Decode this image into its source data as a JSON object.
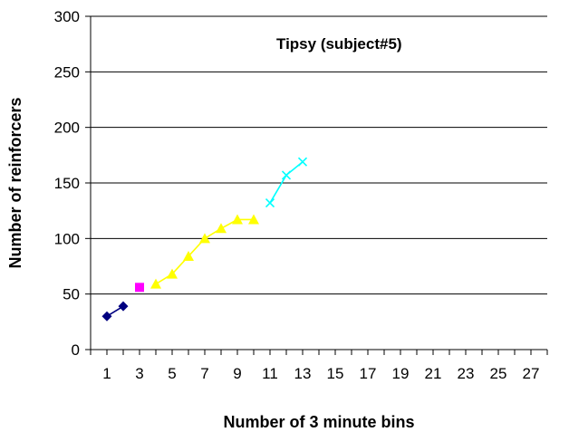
{
  "chart_data": {
    "type": "line",
    "title": "Tipsy (subject#5)",
    "xlabel": "Number of 3 minute bins",
    "ylabel": "Number of reinforcers",
    "xlim": [
      0,
      28
    ],
    "ylim": [
      0,
      300
    ],
    "y_ticks": [
      0,
      50,
      100,
      150,
      200,
      250,
      300
    ],
    "x_tick_labels": [
      "1",
      "3",
      "5",
      "7",
      "9",
      "11",
      "13",
      "15",
      "17",
      "19",
      "21",
      "23",
      "25",
      "27"
    ],
    "grid": "horizontal",
    "legend": "none",
    "series": [
      {
        "color": "#000080",
        "marker": "diamond",
        "connected": true,
        "x": [
          1,
          2
        ],
        "values": [
          30,
          39
        ]
      },
      {
        "color": "#ff00ff",
        "marker": "square",
        "connected": true,
        "x": [
          3
        ],
        "values": [
          56
        ]
      },
      {
        "color": "#ffff00",
        "marker": "triangle",
        "connected": true,
        "x": [
          4,
          5,
          6,
          7,
          8,
          9,
          10
        ],
        "values": [
          59,
          68,
          84,
          100,
          109,
          117,
          117
        ]
      },
      {
        "color": "#00ffff",
        "marker": "x",
        "connected": true,
        "x": [
          11,
          12,
          13
        ],
        "values": [
          132,
          157,
          169
        ]
      }
    ]
  }
}
